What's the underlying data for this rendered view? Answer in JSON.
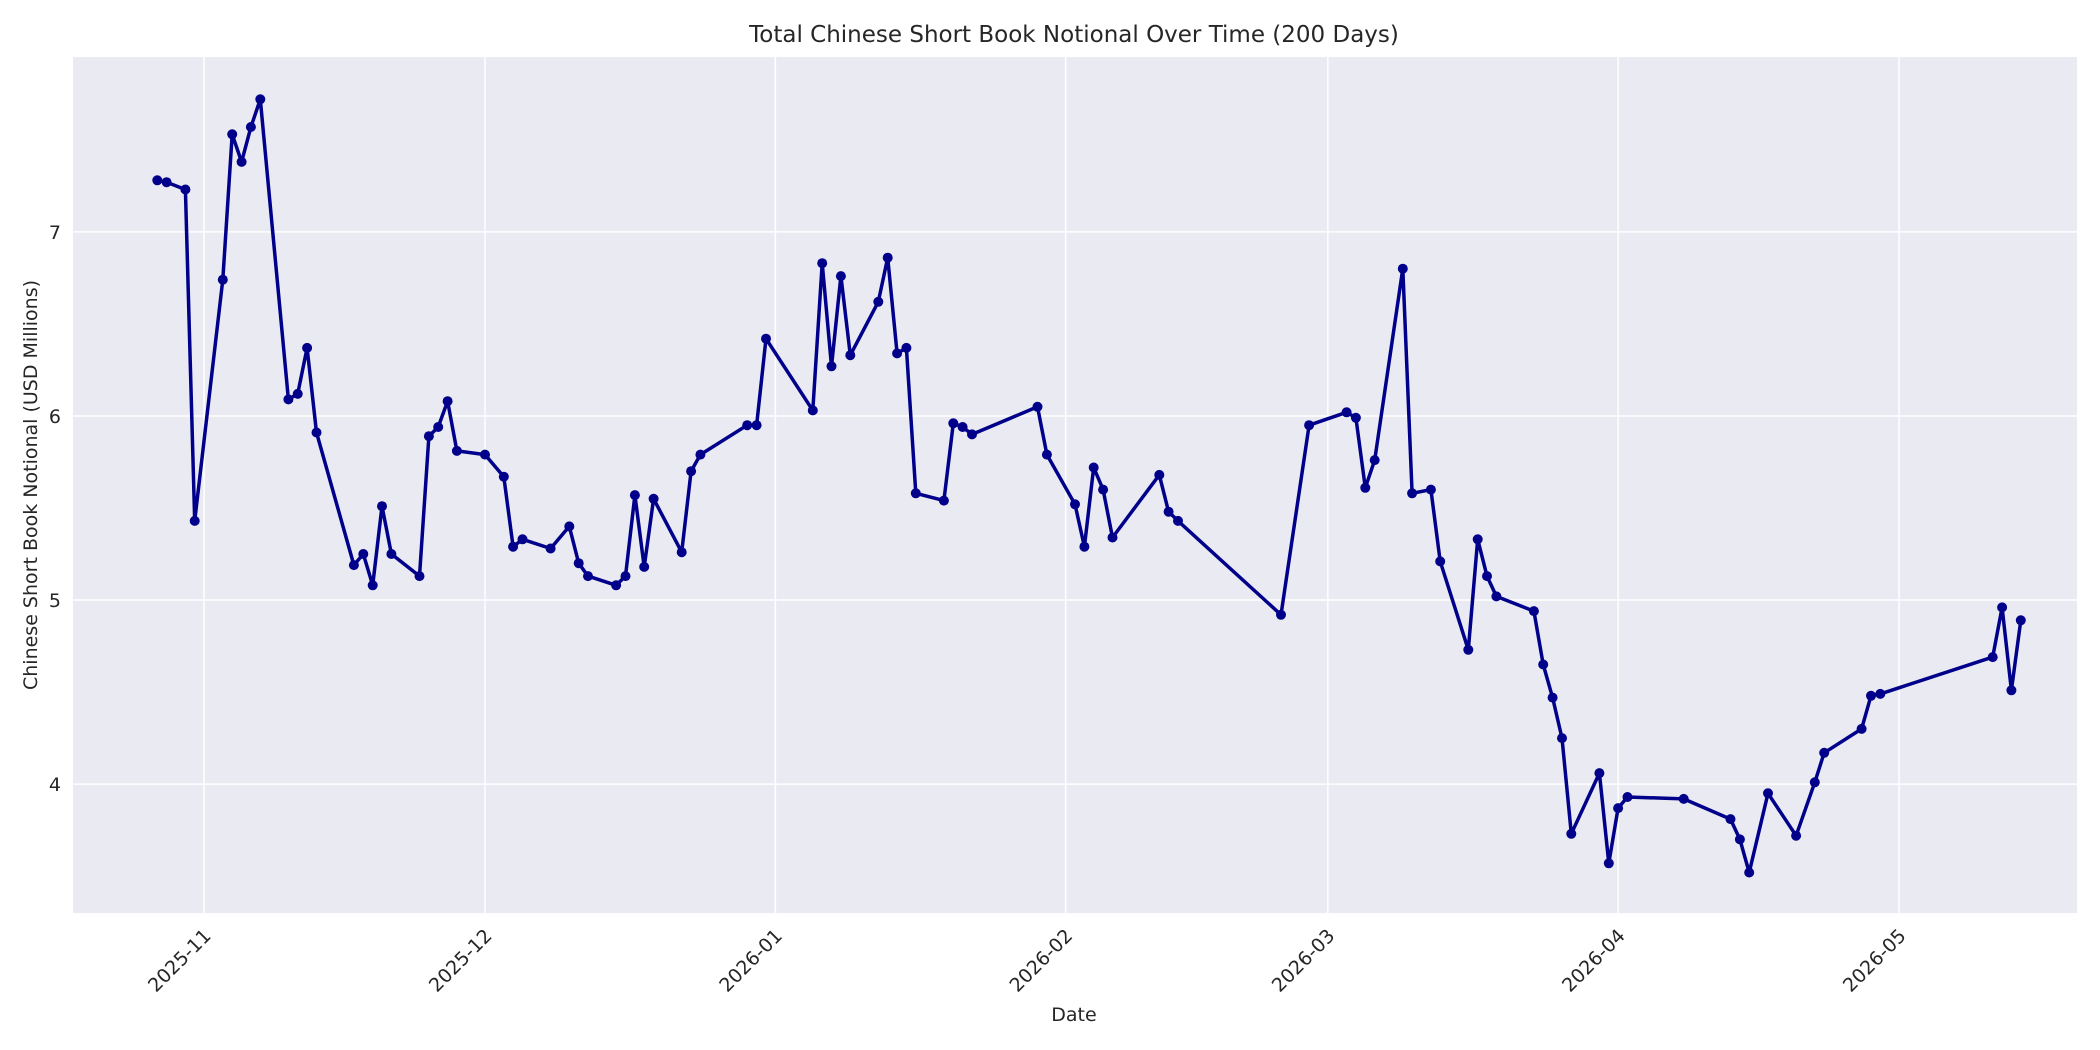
{
  "chart_data": {
    "type": "line",
    "title": "Total Chinese Short Book Notional Over Time (200 Days)",
    "xlabel": "Date",
    "ylabel": "Chinese Short Book Notional (USD Millions)",
    "xlim": [
      "2025-10-18",
      "2026-05-20"
    ],
    "ylim": [
      3.3,
      7.95
    ],
    "yticks": [
      4,
      5,
      6,
      7
    ],
    "xticks": [
      "2025-11",
      "2025-12",
      "2026-01",
      "2026-02",
      "2026-03",
      "2026-04",
      "2026-05"
    ],
    "grid": true,
    "line_color": "#00008b",
    "background_color": "#eaeaf2",
    "series": [
      {
        "points": [
          {
            "x": "2025-10-27",
            "y": 7.28
          },
          {
            "x": "2025-10-28",
            "y": 7.27
          },
          {
            "x": "2025-10-30",
            "y": 7.23
          },
          {
            "x": "2025-10-31",
            "y": 5.43
          },
          {
            "x": "2025-11-03",
            "y": 6.74
          },
          {
            "x": "2025-11-04",
            "y": 7.53
          },
          {
            "x": "2025-11-05",
            "y": 7.38
          },
          {
            "x": "2025-11-06",
            "y": 7.57
          },
          {
            "x": "2025-11-07",
            "y": 7.72
          },
          {
            "x": "2025-11-10",
            "y": 6.09
          },
          {
            "x": "2025-11-11",
            "y": 6.12
          },
          {
            "x": "2025-11-12",
            "y": 6.37
          },
          {
            "x": "2025-11-13",
            "y": 5.91
          },
          {
            "x": "2025-11-17",
            "y": 5.19
          },
          {
            "x": "2025-11-18",
            "y": 5.25
          },
          {
            "x": "2025-11-19",
            "y": 5.08
          },
          {
            "x": "2025-11-20",
            "y": 5.51
          },
          {
            "x": "2025-11-21",
            "y": 5.25
          },
          {
            "x": "2025-11-24",
            "y": 5.13
          },
          {
            "x": "2025-11-25",
            "y": 5.89
          },
          {
            "x": "2025-11-26",
            "y": 5.94
          },
          {
            "x": "2025-11-27",
            "y": 6.08
          },
          {
            "x": "2025-11-28",
            "y": 5.81
          },
          {
            "x": "2025-12-01",
            "y": 5.79
          },
          {
            "x": "2025-12-03",
            "y": 5.67
          },
          {
            "x": "2025-12-04",
            "y": 5.29
          },
          {
            "x": "2025-12-05",
            "y": 5.33
          },
          {
            "x": "2025-12-08",
            "y": 5.28
          },
          {
            "x": "2025-12-10",
            "y": 5.4
          },
          {
            "x": "2025-12-11",
            "y": 5.2
          },
          {
            "x": "2025-12-12",
            "y": 5.13
          },
          {
            "x": "2025-12-15",
            "y": 5.08
          },
          {
            "x": "2025-12-16",
            "y": 5.13
          },
          {
            "x": "2025-12-17",
            "y": 5.57
          },
          {
            "x": "2025-12-18",
            "y": 5.18
          },
          {
            "x": "2025-12-19",
            "y": 5.55
          },
          {
            "x": "2025-12-22",
            "y": 5.26
          },
          {
            "x": "2025-12-23",
            "y": 5.7
          },
          {
            "x": "2025-12-24",
            "y": 5.79
          },
          {
            "x": "2025-12-29",
            "y": 5.95
          },
          {
            "x": "2025-12-30",
            "y": 5.95
          },
          {
            "x": "2025-12-31",
            "y": 6.42
          },
          {
            "x": "2026-01-05",
            "y": 6.03
          },
          {
            "x": "2026-01-06",
            "y": 6.83
          },
          {
            "x": "2026-01-07",
            "y": 6.27
          },
          {
            "x": "2026-01-08",
            "y": 6.76
          },
          {
            "x": "2026-01-09",
            "y": 6.33
          },
          {
            "x": "2026-01-12",
            "y": 6.62
          },
          {
            "x": "2026-01-13",
            "y": 6.86
          },
          {
            "x": "2026-01-14",
            "y": 6.34
          },
          {
            "x": "2026-01-15",
            "y": 6.37
          },
          {
            "x": "2026-01-16",
            "y": 5.58
          },
          {
            "x": "2026-01-19",
            "y": 5.54
          },
          {
            "x": "2026-01-20",
            "y": 5.96
          },
          {
            "x": "2026-01-21",
            "y": 5.94
          },
          {
            "x": "2026-01-22",
            "y": 5.9
          },
          {
            "x": "2026-01-29",
            "y": 6.05
          },
          {
            "x": "2026-01-30",
            "y": 5.79
          },
          {
            "x": "2026-02-02",
            "y": 5.52
          },
          {
            "x": "2026-02-03",
            "y": 5.29
          },
          {
            "x": "2026-02-04",
            "y": 5.72
          },
          {
            "x": "2026-02-05",
            "y": 5.6
          },
          {
            "x": "2026-02-06",
            "y": 5.34
          },
          {
            "x": "2026-02-11",
            "y": 5.68
          },
          {
            "x": "2026-02-12",
            "y": 5.48
          },
          {
            "x": "2026-02-13",
            "y": 5.43
          },
          {
            "x": "2026-02-24",
            "y": 4.92
          },
          {
            "x": "2026-02-27",
            "y": 5.95
          },
          {
            "x": "2026-03-03",
            "y": 6.02
          },
          {
            "x": "2026-03-04",
            "y": 5.99
          },
          {
            "x": "2026-03-05",
            "y": 5.61
          },
          {
            "x": "2026-03-06",
            "y": 5.76
          },
          {
            "x": "2026-03-09",
            "y": 6.8
          },
          {
            "x": "2026-03-10",
            "y": 5.58
          },
          {
            "x": "2026-03-12",
            "y": 5.6
          },
          {
            "x": "2026-03-13",
            "y": 5.21
          },
          {
            "x": "2026-03-16",
            "y": 4.73
          },
          {
            "x": "2026-03-17",
            "y": 5.33
          },
          {
            "x": "2026-03-18",
            "y": 5.13
          },
          {
            "x": "2026-03-19",
            "y": 5.02
          },
          {
            "x": "2026-03-23",
            "y": 4.94
          },
          {
            "x": "2026-03-24",
            "y": 4.65
          },
          {
            "x": "2026-03-25",
            "y": 4.47
          },
          {
            "x": "2026-03-26",
            "y": 4.25
          },
          {
            "x": "2026-03-27",
            "y": 3.73
          },
          {
            "x": "2026-03-30",
            "y": 4.06
          },
          {
            "x": "2026-03-31",
            "y": 3.57
          },
          {
            "x": "2026-04-01",
            "y": 3.87
          },
          {
            "x": "2026-04-02",
            "y": 3.93
          },
          {
            "x": "2026-04-08",
            "y": 3.92
          },
          {
            "x": "2026-04-13",
            "y": 3.81
          },
          {
            "x": "2026-04-14",
            "y": 3.7
          },
          {
            "x": "2026-04-15",
            "y": 3.52
          },
          {
            "x": "2026-04-17",
            "y": 3.95
          },
          {
            "x": "2026-04-20",
            "y": 3.72
          },
          {
            "x": "2026-04-22",
            "y": 4.01
          },
          {
            "x": "2026-04-23",
            "y": 4.17
          },
          {
            "x": "2026-04-27",
            "y": 4.3
          },
          {
            "x": "2026-04-28",
            "y": 4.48
          },
          {
            "x": "2026-04-29",
            "y": 4.49
          },
          {
            "x": "2026-05-11",
            "y": 4.69
          },
          {
            "x": "2026-05-12",
            "y": 4.96
          },
          {
            "x": "2026-05-13",
            "y": 4.51
          },
          {
            "x": "2026-05-14",
            "y": 4.89
          }
        ]
      }
    ]
  }
}
